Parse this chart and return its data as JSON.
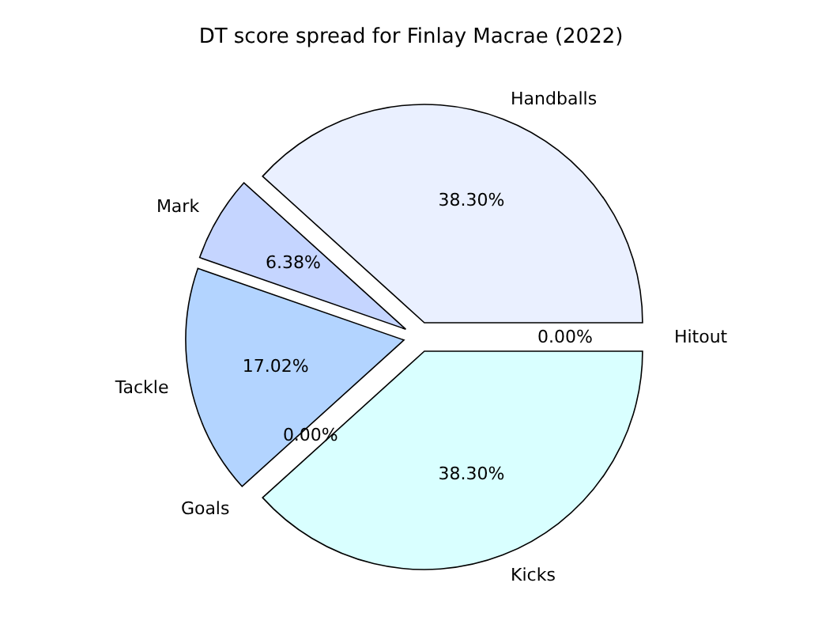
{
  "chart_data": {
    "type": "pie",
    "title": "DT score spread for Finlay Macrae (2022)",
    "categories": [
      "Hitout",
      "Handballs",
      "Mark",
      "Tackle",
      "Goals",
      "Kicks"
    ],
    "values": [
      0,
      38.3,
      6.38,
      17.02,
      0,
      38.3
    ],
    "value_labels": [
      "0.00%",
      "38.30%",
      "6.38%",
      "17.02%",
      "0.00%",
      "38.30%"
    ],
    "colors": [
      "#dde6ff",
      "#eaf0ff",
      "#c5d5ff",
      "#b3d4ff",
      "#a6c8ff",
      "#d9ffff"
    ]
  }
}
